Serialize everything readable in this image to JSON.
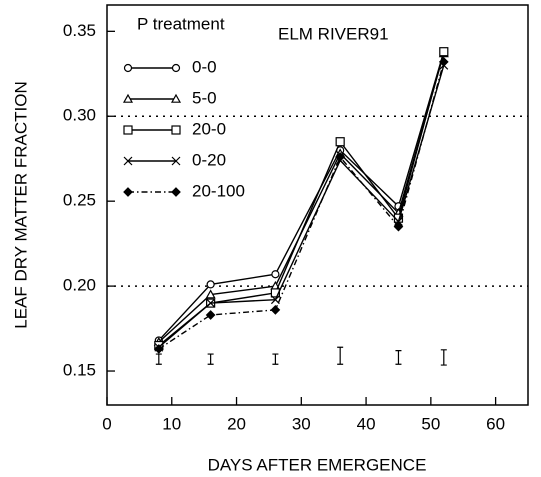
{
  "chart_data": {
    "type": "line",
    "annotation": "ELM RIVER91",
    "legend_title": "P treatment",
    "xlabel": "DAYS AFTER EMERGENCE",
    "ylabel": "LEAF DRY MATTER FRACTION",
    "x": [
      8,
      16,
      26,
      36,
      45,
      52
    ],
    "series": [
      {
        "name": "0-0",
        "color": "#000000",
        "marker": "circle",
        "dash": "solid",
        "values": [
          0.168,
          0.201,
          0.207,
          0.28,
          0.247,
          0.338
        ]
      },
      {
        "name": "5-0",
        "color": "#000000",
        "marker": "triangle",
        "dash": "solid",
        "values": [
          0.167,
          0.195,
          0.2,
          0.278,
          0.243,
          0.337
        ]
      },
      {
        "name": "20-0",
        "color": "#000000",
        "marker": "square",
        "dash": "solid",
        "values": [
          0.165,
          0.19,
          0.196,
          0.285,
          0.24,
          0.338
        ]
      },
      {
        "name": "0-20",
        "color": "#000000",
        "marker": "x",
        "dash": "solid",
        "values": [
          0.164,
          0.19,
          0.192,
          0.274,
          0.238,
          0.33
        ]
      },
      {
        "name": "20-100",
        "color": "#000000",
        "marker": "diamond",
        "dash": "dashdot",
        "values": [
          0.163,
          0.183,
          0.186,
          0.276,
          0.235,
          0.332
        ]
      }
    ],
    "error_bars": {
      "x": [
        8,
        16,
        26,
        36,
        45,
        52
      ],
      "center": [
        0.157,
        0.157,
        0.157,
        0.159,
        0.158,
        0.158
      ],
      "half": [
        0.003,
        0.003,
        0.003,
        0.005,
        0.004,
        0.0045
      ]
    },
    "hlines": [
      0.2,
      0.3
    ],
    "xlim": [
      0,
      65
    ],
    "ylim": [
      0.13,
      0.3655
    ],
    "xticks": [
      0,
      10,
      20,
      30,
      40,
      50,
      60
    ],
    "yticks": [
      0.15,
      {
        "value": 0.2,
        "label": "0.20"
      },
      0.25,
      {
        "value": 0.3,
        "label": "0.30"
      },
      0.35
    ]
  }
}
